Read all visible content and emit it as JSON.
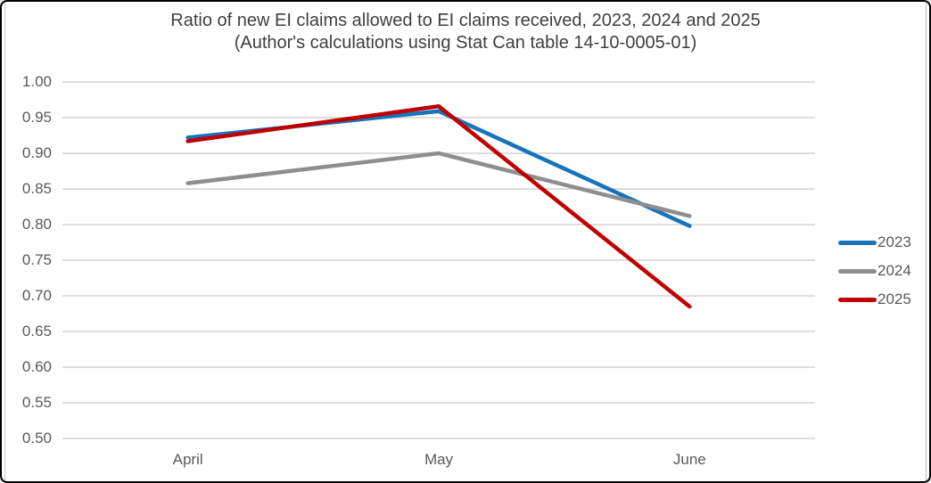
{
  "window": {
    "background": "#ffffff",
    "border_color": "#000000"
  },
  "chart_data": {
    "type": "line",
    "title_line1": "Ratio of new EI claims allowed to EI claims received, 2023, 2024 and 2025",
    "title_line2": "(Author's calculations using Stat Can table 14-10-0005-01)",
    "categories": [
      "April",
      "May",
      "June"
    ],
    "series": [
      {
        "name": "2023",
        "color": "#1774bb",
        "values": [
          0.922,
          0.959,
          0.798
        ]
      },
      {
        "name": "2024",
        "color": "#8e8e8e",
        "values": [
          0.858,
          0.9,
          0.812
        ]
      },
      {
        "name": "2025",
        "color": "#c00000",
        "values": [
          0.917,
          0.966,
          0.685
        ]
      }
    ],
    "y_axis": {
      "min": 0.5,
      "max": 1.0,
      "step": 0.05,
      "tick_labels": [
        "1.00",
        "0.95",
        "0.90",
        "0.85",
        "0.80",
        "0.75",
        "0.70",
        "0.65",
        "0.60",
        "0.55",
        "0.50"
      ]
    },
    "xlabel": "",
    "ylabel": "",
    "grid": true,
    "legend_position": "right",
    "colors": {
      "gridline": "#d9d9d9",
      "title_text": "#3f3f3f",
      "axis_text": "#595959"
    }
  }
}
